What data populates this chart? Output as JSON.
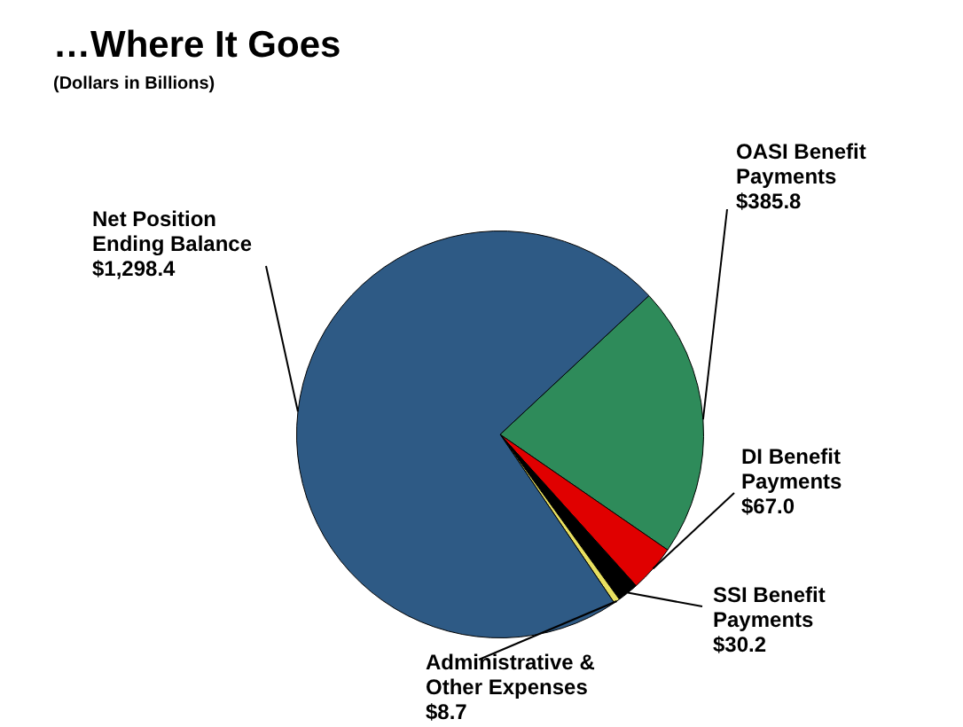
{
  "chart_data": {
    "type": "pie",
    "title": "…Where It Goes",
    "subtitle": "(Dollars in Billions)",
    "categories": [
      "OASI Benefit Payments",
      "DI Benefit Payments",
      "SSI Benefit Payments",
      "Administrative & Other Expenses",
      "Net Position Ending Balance"
    ],
    "values": [
      385.8,
      67.0,
      30.2,
      8.7,
      1298.4
    ],
    "colors": [
      "#2e8b5a",
      "#e00000",
      "#000000",
      "#e8e060",
      "#2e5a85"
    ],
    "value_labels": [
      "$385.8",
      "$67.0",
      "$30.2",
      "$8.7",
      "$1,298.4"
    ],
    "legend": false
  }
}
